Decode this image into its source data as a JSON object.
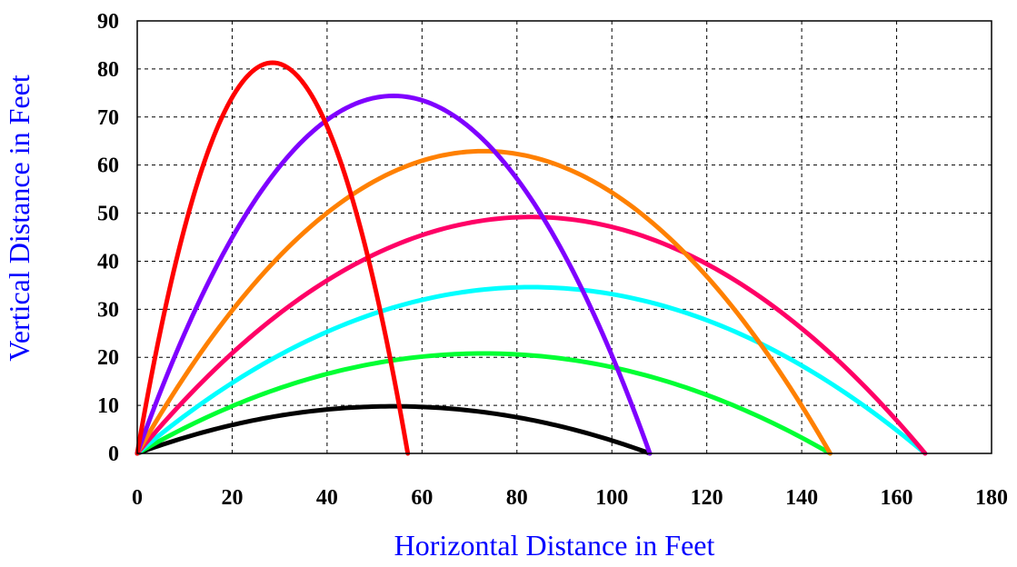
{
  "chart_data": {
    "type": "line",
    "title": "",
    "xlabel": "Horizontal Distance in Feet",
    "ylabel": "Vertical Distance in Feet",
    "xlim": [
      0,
      180
    ],
    "ylim": [
      0,
      90
    ],
    "x_ticks": [
      0,
      20,
      40,
      60,
      80,
      100,
      120,
      140,
      160,
      180
    ],
    "y_ticks": [
      0,
      10,
      20,
      30,
      40,
      50,
      60,
      70,
      80,
      90
    ],
    "grid": true,
    "legend": false,
    "series": [
      {
        "color": "#000000",
        "range": 108,
        "max_height": 9.8
      },
      {
        "color": "#00ff33",
        "range": 146,
        "max_height": 20.8
      },
      {
        "color": "#00ffff",
        "range": 166,
        "max_height": 34.6
      },
      {
        "color": "#ff0066",
        "range": 166,
        "max_height": 49.2
      },
      {
        "color": "#ff8000",
        "range": 146,
        "max_height": 62.9
      },
      {
        "color": "#7f00ff",
        "range": 108,
        "max_height": 74.4
      },
      {
        "color": "#ff0000",
        "range": 57,
        "max_height": 81.3
      }
    ]
  }
}
